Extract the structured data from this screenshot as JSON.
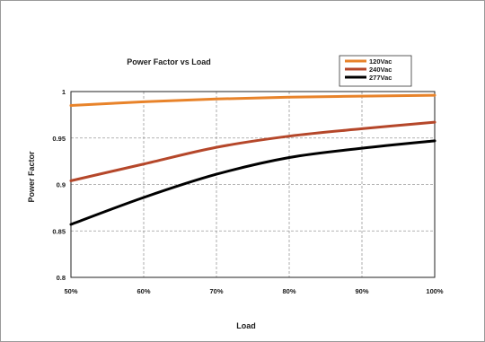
{
  "chart_data": {
    "type": "line",
    "title": "Power Factor vs Load",
    "xlabel": "Load",
    "ylabel": "Power Factor",
    "x": [
      "50%",
      "60%",
      "70%",
      "80%",
      "90%",
      "100%"
    ],
    "ylim": [
      0.8,
      1
    ],
    "yticks": [
      "0.8",
      "0.85",
      "0.9",
      "0.95",
      "1"
    ],
    "grid": true,
    "legend_position": "top-right",
    "series": [
      {
        "name": "120Vac",
        "color": "#e8832a",
        "values": [
          0.985,
          0.989,
          0.992,
          0.994,
          0.995,
          0.996
        ]
      },
      {
        "name": "240Vac",
        "color": "#b5472a",
        "values": [
          0.904,
          0.922,
          0.94,
          0.952,
          0.96,
          0.967
        ]
      },
      {
        "name": "277Vac",
        "color": "#000000",
        "values": [
          0.857,
          0.886,
          0.911,
          0.929,
          0.939,
          0.947
        ]
      }
    ]
  }
}
